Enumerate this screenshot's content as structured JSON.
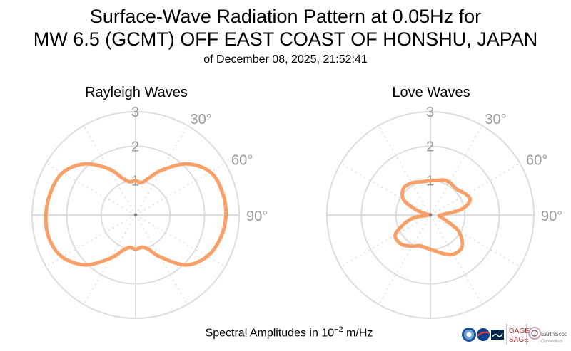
{
  "header": {
    "title_line1": "Surface-Wave Radiation Pattern at 0.05Hz for",
    "title_line2": "MW 6.5 (GCMT) OFF EAST COAST OF HONSHU, JAPAN",
    "subtitle": "of December 08, 2025, 21:52:41"
  },
  "footer": {
    "label_prefix": "Spectral Amplitudes in 10",
    "label_exponent": "−2",
    "label_suffix": " m/Hz"
  },
  "logos": {
    "gage": "GAGE",
    "sage": "SAGE",
    "earthscope": "EarthScope",
    "earthscope_sub": "Consortium"
  },
  "colors": {
    "series": "#f8a068",
    "grid": "#dddddd",
    "tick_label": "#999999"
  },
  "chart_data": [
    {
      "type": "polar-line",
      "title": "Rayleigh Waves",
      "radial_ticks": [
        "1",
        "2",
        "3"
      ],
      "radial_range": [
        0,
        3
      ],
      "angular_ticks": [
        "30°",
        "60°",
        "90°"
      ],
      "grid": true,
      "series": [
        {
          "azimuth_deg": [
            0,
            10,
            20,
            30,
            45,
            60,
            75,
            90,
            105,
            120,
            135,
            150,
            160,
            170,
            180,
            190,
            200,
            210,
            225,
            240,
            255,
            270,
            285,
            300,
            315,
            330,
            340,
            350
          ],
          "amplitude": [
            1.0,
            0.95,
            1.15,
            1.5,
            2.1,
            2.5,
            2.6,
            2.62,
            2.55,
            2.4,
            2.05,
            1.4,
            1.05,
            0.95,
            1.0,
            0.95,
            1.1,
            1.45,
            2.05,
            2.45,
            2.6,
            2.6,
            2.55,
            2.45,
            2.1,
            1.55,
            1.15,
            0.98
          ]
        }
      ]
    },
    {
      "type": "polar-line",
      "title": "Love Waves",
      "radial_ticks": [
        "1",
        "2",
        "3"
      ],
      "radial_range": [
        0,
        3
      ],
      "angular_ticks": [
        "30°",
        "60°",
        "90°"
      ],
      "grid": true,
      "series": [
        {
          "azimuth_deg": [
            0,
            10,
            20,
            30,
            45,
            60,
            70,
            80,
            90,
            100,
            110,
            120,
            135,
            150,
            160,
            170,
            180,
            190,
            200,
            210,
            225,
            240,
            250,
            260,
            270,
            280,
            290,
            300,
            315,
            330,
            345
          ],
          "amplitude": [
            1.0,
            1.02,
            1.08,
            1.1,
            1.07,
            1.2,
            1.22,
            0.9,
            0.3,
            0.3,
            0.5,
            0.95,
            1.3,
            1.32,
            1.2,
            1.08,
            1.0,
            0.95,
            0.95,
            1.05,
            1.2,
            1.18,
            0.85,
            0.5,
            0.05,
            0.05,
            0.45,
            0.9,
            1.1,
            1.08,
            1.0
          ]
        }
      ]
    }
  ]
}
